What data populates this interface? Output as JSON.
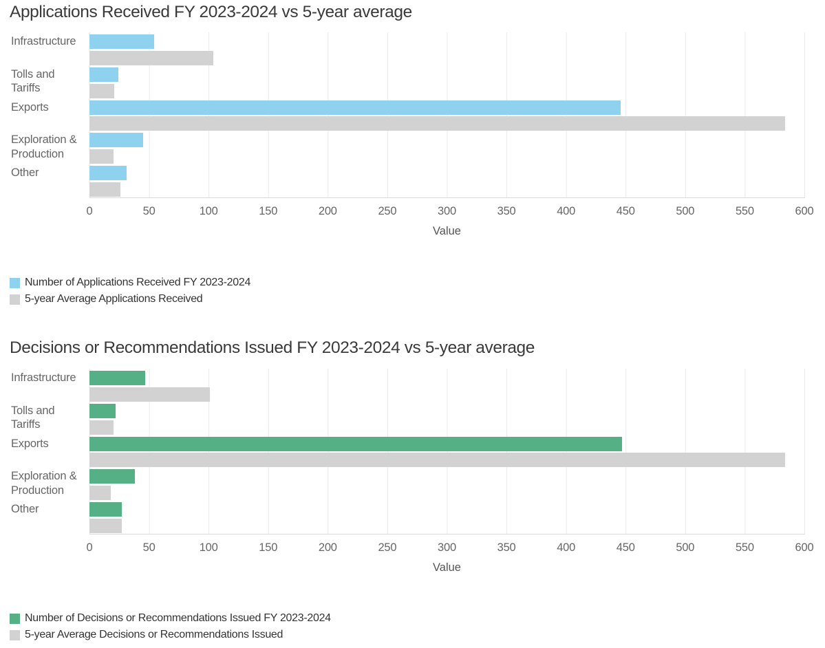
{
  "page_background": "#ffffff",
  "colors": {
    "title_text": "#3a3a3a",
    "axis_text": "#666666",
    "legend_text": "#333333",
    "gridline": "#e9e9e9",
    "axis_line": "#d9d9d9",
    "applications_bar": "#8fd2f0",
    "decisions_bar": "#55b185",
    "average_bar": "#d2d2d2"
  },
  "chart_data": [
    {
      "type": "bar",
      "orientation": "horizontal",
      "title": "Applications Received FY 2023-2024 vs 5-year average",
      "xlabel": "Value",
      "xlim": [
        0,
        600
      ],
      "x_ticks": [
        0,
        50,
        100,
        150,
        200,
        250,
        300,
        350,
        400,
        450,
        500,
        550,
        600
      ],
      "grid": true,
      "legend_position": "below-left",
      "categories": [
        "Infrastructure",
        "Tolls and\nTariffs",
        "Exports",
        "Exploration &\nProduction",
        "Other"
      ],
      "series": [
        {
          "name": "Number of Applications Received FY 2023-2024",
          "color": "#8fd2f0",
          "values": [
            54,
            24,
            446,
            45,
            31
          ]
        },
        {
          "name": "5-year Average Applications Received",
          "color": "#d2d2d2",
          "values": [
            104,
            21,
            584,
            20,
            26
          ]
        }
      ]
    },
    {
      "type": "bar",
      "orientation": "horizontal",
      "title": "Decisions or Recommendations Issued FY 2023-2024 vs 5-year average",
      "xlabel": "Value",
      "xlim": [
        0,
        600
      ],
      "x_ticks": [
        0,
        50,
        100,
        150,
        200,
        250,
        300,
        350,
        400,
        450,
        500,
        550,
        600
      ],
      "grid": true,
      "legend_position": "below-left",
      "categories": [
        "Infrastructure",
        "Tolls and\nTariffs",
        "Exports",
        "Exploration &\nProduction",
        "Other"
      ],
      "series": [
        {
          "name": "Number of Decisions or Recommendations Issued FY 2023-2024",
          "color": "#55b185",
          "values": [
            47,
            22,
            447,
            38,
            27
          ]
        },
        {
          "name": "5-year Average Decisions or Recommendations Issued",
          "color": "#d2d2d2",
          "values": [
            101,
            20,
            584,
            18,
            27
          ]
        }
      ]
    }
  ]
}
